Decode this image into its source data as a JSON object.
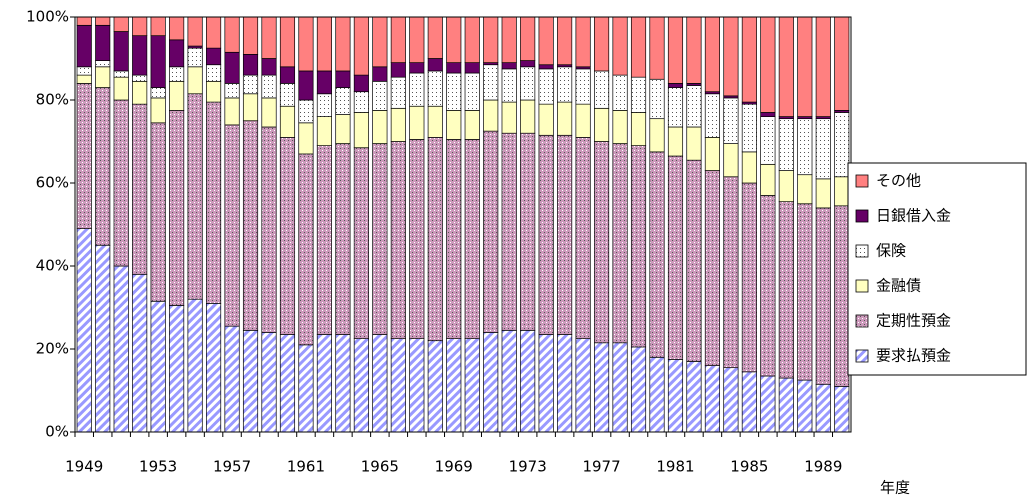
{
  "chart_data": {
    "type": "stacked-bar",
    "x_label": "年度",
    "categories": [
      "1949",
      null,
      null,
      null,
      "1953",
      null,
      null,
      null,
      "1957",
      null,
      null,
      null,
      "1961",
      null,
      null,
      null,
      "1965",
      null,
      null,
      null,
      "1969",
      null,
      null,
      null,
      "1973",
      null,
      null,
      null,
      "1977",
      null,
      null,
      null,
      "1981",
      null,
      null,
      null,
      "1985",
      null,
      null,
      null,
      "1989",
      null
    ],
    "ylim": [
      0,
      100
    ],
    "yticks": [
      {
        "value": 0,
        "label": "0%"
      },
      {
        "value": 20,
        "label": "20%"
      },
      {
        "value": 40,
        "label": "40%"
      },
      {
        "value": 60,
        "label": "60%"
      },
      {
        "value": 80,
        "label": "80%"
      },
      {
        "value": 100,
        "label": "100%"
      }
    ],
    "legend_position": "right",
    "series": [
      {
        "name": "要求払預金",
        "color": "#9999ff",
        "pattern": "diagonal",
        "values": [
          49,
          45,
          40,
          38,
          31.5,
          30.5,
          32,
          31,
          25.5,
          24.5,
          24,
          23.5,
          21,
          23.5,
          23.5,
          22.5,
          23.5,
          22.5,
          22.5,
          22,
          22.5,
          22.5,
          24,
          24.5,
          24.5,
          23.5,
          23.5,
          22.5,
          21.5,
          21.5,
          20.5,
          18,
          17.5,
          17,
          16,
          15.5,
          14.5,
          13.5,
          13,
          12.5,
          11.5,
          11
        ]
      },
      {
        "name": "定期性預金",
        "color": "#cc99bb",
        "pattern": "dots",
        "values": [
          35,
          38,
          40,
          41,
          43,
          47,
          49.5,
          48.5,
          48.5,
          50.5,
          49.5,
          47.5,
          46,
          45.5,
          46,
          46,
          46,
          47.5,
          48,
          49,
          48,
          48,
          48.5,
          47.5,
          47.5,
          48,
          48,
          48.5,
          48.5,
          48,
          48.5,
          49.5,
          49,
          48.5,
          47,
          46,
          45.5,
          43.5,
          42.5,
          42.5,
          42.5,
          43.5
        ]
      },
      {
        "name": "金融債",
        "color": "#ffffc0",
        "pattern": "solid",
        "values": [
          2,
          5,
          5.5,
          5.5,
          6,
          7,
          6.5,
          5,
          6.5,
          6.5,
          7,
          7.5,
          7.5,
          7,
          7,
          8.5,
          8,
          8,
          8,
          7.5,
          7,
          7,
          7.5,
          7.5,
          8,
          7.5,
          8,
          8,
          8,
          8,
          8,
          8,
          7,
          8,
          8,
          8,
          7.5,
          7.5,
          7.5,
          7,
          7,
          7
        ]
      },
      {
        "name": "保険",
        "color": "#ffffff",
        "pattern": "dots",
        "values": [
          2,
          1.5,
          1.5,
          1.5,
          2.5,
          3.5,
          4.5,
          4,
          3.5,
          4.5,
          5.5,
          5.5,
          5.5,
          5.5,
          6.5,
          5,
          7,
          7.5,
          8,
          8.5,
          9,
          9,
          8.5,
          8,
          8,
          8.5,
          8.5,
          8.5,
          9,
          8.5,
          8.5,
          9.5,
          9.5,
          10,
          10.5,
          11,
          11.5,
          11.5,
          12.5,
          13.5,
          14.5,
          15.5
        ]
      },
      {
        "name": "日銀借入金",
        "color": "#660066",
        "pattern": "solid",
        "values": [
          10,
          8.5,
          9.5,
          9.5,
          12.5,
          6.5,
          0.5,
          4,
          7.5,
          5,
          4,
          4,
          7,
          5.5,
          4,
          4,
          3.5,
          3.5,
          2.5,
          3,
          2.5,
          2.5,
          0.5,
          1.5,
          1.5,
          1,
          0.5,
          0.5,
          0,
          0,
          0,
          0,
          1,
          0.5,
          0.5,
          0.5,
          0.5,
          1,
          0.5,
          0.5,
          0.5,
          0.5
        ]
      },
      {
        "name": "その他",
        "color": "#ff8080",
        "pattern": "solid",
        "values": [
          2,
          2,
          3.5,
          4.5,
          4.5,
          5.5,
          7,
          7.5,
          8.5,
          9,
          10,
          12,
          13,
          13,
          13,
          14,
          12,
          11,
          11,
          10,
          11,
          11,
          11,
          11,
          10.5,
          11.5,
          11.5,
          12,
          13,
          14,
          14.5,
          15,
          16,
          16,
          18,
          19,
          20.5,
          23,
          24,
          24,
          24,
          22.5
        ]
      }
    ]
  }
}
